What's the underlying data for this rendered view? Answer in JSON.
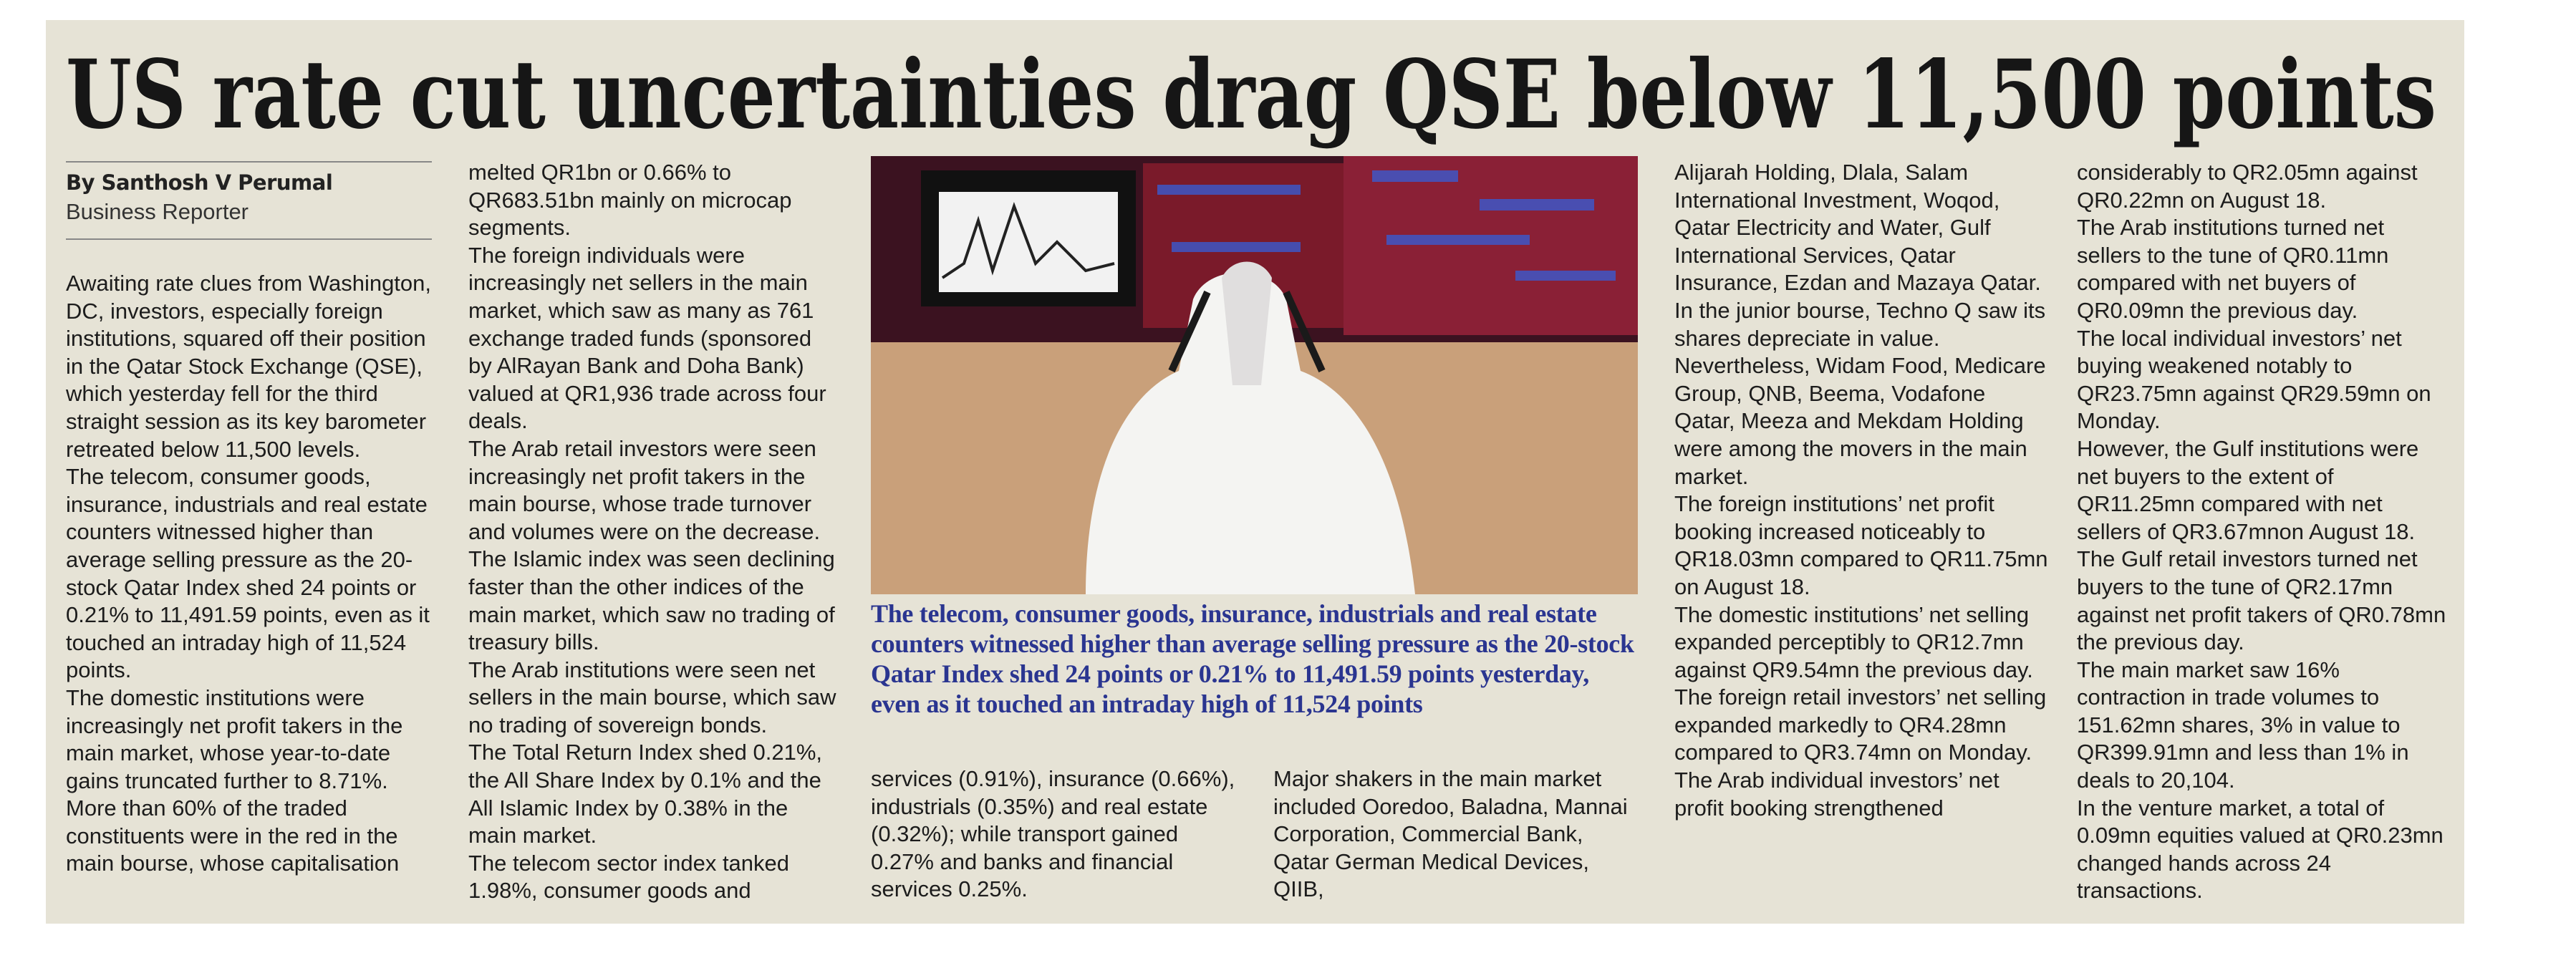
{
  "header": {
    "title": "US rate cut uncertainties drag QSE below 11,500 points"
  },
  "byline": {
    "author": "By Santhosh V Perumal",
    "role": "Business Reporter"
  },
  "caption": "The telecom, consumer goods, insurance, industrials and real estate counters witnessed higher than average selling pressure as the 20-stock Qatar Index shed 24 points or 0.21% to 11,491.59 points yesterday, even as it touched an intraday high of 11,524 points",
  "columns": [
    {
      "paragraphs": [
        "Awaiting rate clues from Washington, DC, investors, especially foreign institutions, squared off their position in the Qatar Stock Exchange (QSE), which yesterday fell for the third straight session as its key barometer retreated below 11,500 levels.",
        "The telecom, consumer goods, insurance, industrials and real estate counters witnessed higher than average selling pressure as the 20-stock Qatar Index shed 24 points or 0.21% to 11,491.59 points, even as it touched an intraday high of 11,524 points.",
        "The domestic institutions were increasingly net profit takers in the main market, whose year-to-date gains truncated further to 8.71%.",
        "More than 60% of the traded constituents were in the red in the main bourse, whose capitalisation"
      ]
    },
    {
      "paragraphs": [
        "melted QR1bn or 0.66% to QR683.51bn mainly on microcap segments.",
        "The foreign individuals were increasingly net sellers in the main market, which saw as many as 761 exchange traded funds (sponsored by AlRayan Bank and Doha Bank) valued at QR1,936 trade across four deals.",
        "The Arab retail investors were seen increasingly net profit takers in the main bourse, whose trade turnover and volumes were on the decrease.",
        "The Islamic index was seen declining faster than the other indices of the main market, which saw no trading of treasury bills.",
        "The Arab institutions were seen net sellers in the main bourse, which saw no trading of sovereign bonds.",
        "The Total Return Index shed 0.21%, the All Share Index by 0.1% and the All Islamic Index by 0.38% in the main market.",
        "The telecom sector index tanked 1.98%, consumer goods and"
      ]
    },
    {
      "paragraphs": [
        "services (0.91%), insurance (0.66%), industrials (0.35%) and real estate (0.32%); while transport gained 0.27% and banks and financial services 0.25%."
      ]
    },
    {
      "paragraphs": [
        "Major shakers in the main market included Ooredoo, Baladna, Mannai Corporation, Commercial Bank, Qatar German Medical Devices, QIIB,"
      ]
    },
    {
      "paragraphs": [
        "Alijarah Holding, Dlala, Salam International Investment, Woqod, Qatar Electricity and Water, Gulf International Services, Qatar Insurance, Ezdan and Mazaya Qatar. In the junior bourse, Techno Q saw its shares depreciate in value.",
        "Nevertheless, Widam Food, Medicare Group, QNB, Beema, Vodafone Qatar, Meeza and Mekdam Holding were among the movers in the main market.",
        "The foreign institutions’ net profit booking increased noticeably to QR18.03mn compared to QR11.75mn on August 18.",
        "The domestic institutions’ net selling expanded perceptibly to QR12.7mn against QR9.54mn the previous day.",
        "The foreign retail investors’ net selling expanded markedly to QR4.28mn compared to QR3.74mn on Monday.",
        "The Arab individual investors’ net profit booking strengthened"
      ]
    },
    {
      "paragraphs": [
        "considerably to QR2.05mn against QR0.22mn on August 18.",
        "The Arab institutions turned net sellers to the tune of QR0.11mn compared with net buyers of QR0.09mn the previous day.",
        "The local individual investors’ net buying weakened notably to QR23.75mn against QR29.59mn on Monday.",
        "However, the Gulf institutions were net buyers to the extent of QR11.25mn compared with net sellers of QR3.67mnon August 18.",
        "The Gulf retail investors turned net buyers to the tune of QR2.17mn against net profit takers of QR0.78mn the previous day.",
        "The main market saw 16% contraction in trade volumes to 151.62mn shares, 3% in value to QR399.91mn and less than 1% in deals to 20,104.",
        "In the venture market, a total of 0.09mn equities valued at QR0.23mn changed hands across 24 transactions."
      ]
    }
  ]
}
